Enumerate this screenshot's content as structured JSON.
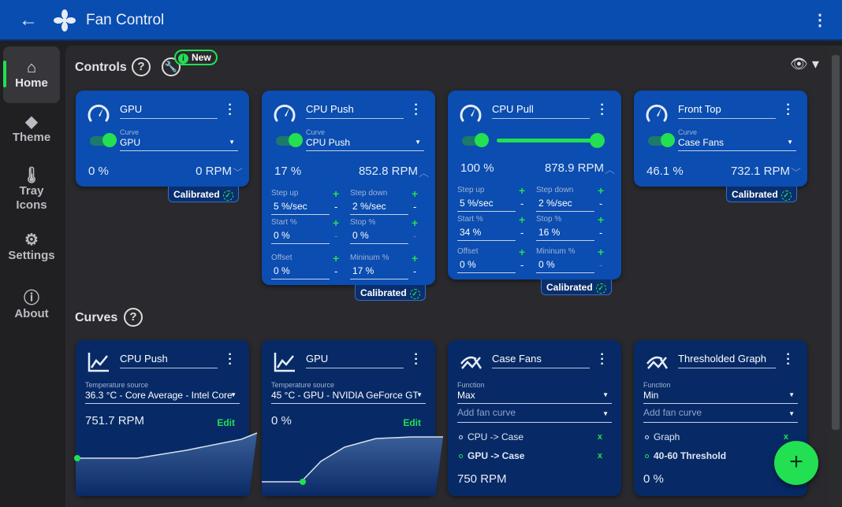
{
  "app": {
    "title": "Fan Control",
    "back_icon": "arrow-left-icon",
    "logo_icon": "fan-icon",
    "menu_icon": "kebab-icon"
  },
  "sidebar": {
    "items": [
      {
        "label": "Home",
        "icon": "home-icon",
        "active": true
      },
      {
        "label": "Theme",
        "icon": "paint-bucket-icon"
      },
      {
        "label": "Tray Icons",
        "icon": "thermometer-icon"
      },
      {
        "label": "Settings",
        "icon": "gear-icon"
      },
      {
        "label": "About",
        "icon": "info-icon"
      }
    ]
  },
  "controls": {
    "title": "Controls",
    "help": "?",
    "new_badge": "New",
    "cards": [
      {
        "name": "GPU",
        "curve_label": "Curve",
        "curve": "GPU",
        "enabled": true,
        "percent": "0 %",
        "rpm": "0 RPM",
        "expanded": false,
        "calibrated": "Calibrated"
      },
      {
        "name": "CPU Push",
        "curve_label": "Curve",
        "curve": "CPU Push",
        "enabled": true,
        "percent": "17 %",
        "rpm": "852.8 RPM",
        "expanded": true,
        "calibrated": "Calibrated",
        "fields": [
          {
            "label": "Step up",
            "value": "5 %/sec"
          },
          {
            "label": "Step down",
            "value": "2 %/sec"
          },
          {
            "label": "Start %",
            "value": "0 %",
            "minus_disabled": true
          },
          {
            "label": "Stop %",
            "value": "0 %",
            "minus_disabled": true
          },
          {
            "label": "Offset",
            "value": "0 %"
          },
          {
            "label": "Mininum %",
            "value": "17 %"
          }
        ]
      },
      {
        "name": "CPU Pull",
        "enabled": true,
        "manual_value": 100,
        "percent": "100 %",
        "rpm": "878.9 RPM",
        "expanded": true,
        "calibrated": "Calibrated",
        "fields": [
          {
            "label": "Step up",
            "value": "5 %/sec"
          },
          {
            "label": "Step down",
            "value": "2 %/sec"
          },
          {
            "label": "Start %",
            "value": "34 %"
          },
          {
            "label": "Stop %",
            "value": "16 %"
          },
          {
            "label": "Offset",
            "value": "0 %"
          },
          {
            "label": "Mininum %",
            "value": "0 %",
            "minus_disabled": true
          }
        ]
      },
      {
        "name": "Front Top",
        "curve_label": "Curve",
        "curve": "Case Fans",
        "enabled": true,
        "percent": "46.1 %",
        "rpm": "732.1 RPM",
        "expanded": false,
        "calibrated": "Calibrated"
      }
    ]
  },
  "curves": {
    "title": "Curves",
    "help": "?",
    "cards": [
      {
        "type": "graph",
        "name": "CPU Push",
        "source_label": "Temperature source",
        "source": "36.3 °C - Core Average - Intel Core",
        "value": "751.7 RPM",
        "edit": "Edit"
      },
      {
        "type": "graph",
        "name": "GPU",
        "source_label": "Temperature source",
        "source": "45 °C - GPU - NVIDIA GeForce GT",
        "value": "0 %",
        "edit": "Edit"
      },
      {
        "type": "mix",
        "name": "Case Fans",
        "function_label": "Function",
        "function": "Max",
        "add_placeholder": "Add fan curve",
        "items": [
          {
            "label": "CPU -> Case",
            "remove": "x"
          },
          {
            "label": "GPU -> Case",
            "remove": "x",
            "active": true
          }
        ],
        "value": "750 RPM"
      },
      {
        "type": "mix",
        "name": "Thresholded Graph",
        "function_label": "Function",
        "function": "Min",
        "add_placeholder": "Add fan curve",
        "items": [
          {
            "label": "Graph",
            "remove": "x"
          },
          {
            "label": "40-60 Threshold",
            "remove": "x",
            "active": true
          }
        ],
        "value": "0 %"
      }
    ]
  },
  "fab": {
    "label": "+"
  },
  "colors": {
    "accent": "#22e052",
    "header": "#0a4db0",
    "control_card": "#0b4db0",
    "curve_card": "#072a66",
    "background": "#2a2a2e"
  }
}
